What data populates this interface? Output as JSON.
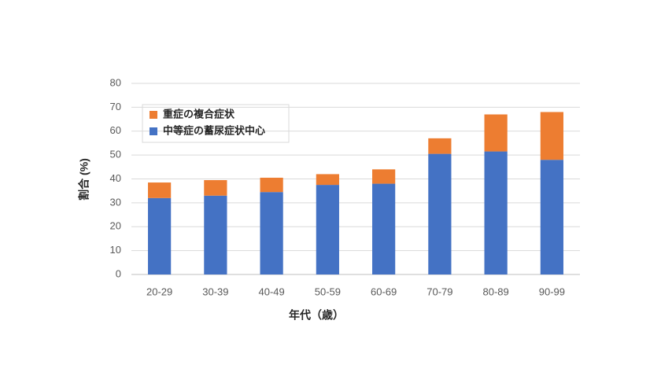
{
  "chart_data": {
    "type": "stacked_bar",
    "x_label": "年代（歳）",
    "y_label": "割合 (%)",
    "categories": [
      "20-29",
      "30-39",
      "40-49",
      "50-59",
      "60-69",
      "70-79",
      "80-89",
      "90-99"
    ],
    "series": [
      {
        "name": "中等症の蓄尿症状中心",
        "color": "#4472c4",
        "values": [
          32,
          33,
          34.5,
          37.5,
          38,
          50.5,
          51.5,
          48
        ]
      },
      {
        "name": "重症の複合症状",
        "color": "#ed7d31",
        "values": [
          6.5,
          6.5,
          6,
          4.5,
          6,
          6.5,
          15.5,
          20
        ]
      }
    ],
    "ylim": [
      0,
      80
    ],
    "yticks": [
      0,
      10,
      20,
      30,
      40,
      50,
      60,
      70,
      80
    ],
    "grid": true
  }
}
